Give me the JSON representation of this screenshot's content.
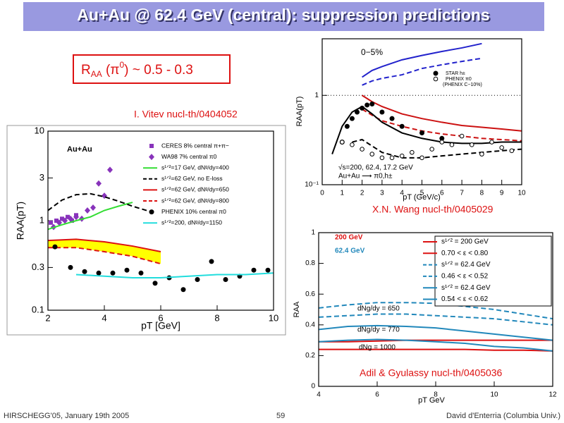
{
  "slide": {
    "title": "Au+Au @ 62.4 GeV (central): suppression predictions",
    "box": [
      "R",
      "AA",
      " (π",
      "0",
      ") ~ 0.5 - 0.3"
    ],
    "credits": [
      "I. Vitev nucl-th/0404052",
      "X.N. Wang nucl-th/0405029",
      "Adil & Gyulassy nucl-th/0405036"
    ],
    "footer": [
      "HIRSCHEGG'05, January 19th 2005",
      "59",
      "David d'Enterria (Columbia Univ.)"
    ]
  },
  "chart_data": [
    {
      "type": "line",
      "xlabel": "pT [GeV]",
      "ylabel": "RAA(pT)",
      "log_y": true,
      "xlim": [
        2,
        10
      ],
      "ylim": [
        0.1,
        10
      ],
      "xticks": [
        2,
        4,
        6,
        8,
        10
      ],
      "yticks": [
        0.1,
        0.3,
        1,
        3,
        10
      ],
      "annotations": [
        {
          "text": "Au+Au"
        }
      ],
      "series": [
        {
          "name": "CERES 8% central π+π−",
          "color": "#8833bb",
          "marker": "square",
          "x": [
            2.1,
            2.3,
            2.5,
            2.7,
            2.85,
            3.0
          ],
          "values": [
            0.95,
            1.0,
            1.05,
            1.1,
            1.0,
            1.15
          ]
        },
        {
          "name": "WA98 7% central π0",
          "color": "#8833bb",
          "marker": "diamond",
          "x": [
            2.2,
            2.4,
            2.6,
            2.8,
            3.0,
            3.2,
            3.4,
            3.6,
            3.8,
            4.0,
            4.2
          ],
          "values": [
            0.85,
            0.95,
            1.0,
            1.05,
            1.1,
            1.05,
            1.3,
            1.4,
            2.6,
            1.9,
            3.7
          ]
        },
        {
          "name": "s¹ᐟ²=17 GeV, dNᵍ/dy=400",
          "color": "#33dd33",
          "x": [
            2,
            2.5,
            3,
            3.5,
            4,
            4.5,
            5
          ],
          "values": [
            0.8,
            0.9,
            1.0,
            1.1,
            1.3,
            1.45,
            1.6
          ]
        },
        {
          "name": "s¹ᐟ²=62 GeV, no E-loss",
          "color": "#000000",
          "dash": true,
          "x": [
            2,
            2.5,
            3,
            3.5,
            4,
            4.5,
            5,
            5.5
          ],
          "values": [
            1.3,
            1.7,
            1.95,
            2.0,
            1.85,
            1.65,
            1.45,
            1.3
          ]
        },
        {
          "name": "s¹ᐟ²=62 GeV, dNᵍ/dy=650",
          "color": "#dd1111",
          "band_fill": "#ffff00",
          "x": [
            2,
            3,
            4,
            5,
            6
          ],
          "values": [
            0.6,
            0.62,
            0.58,
            0.52,
            0.45
          ]
        },
        {
          "name": "s¹ᐟ²=62 GeV, dNᵍ/dy=800",
          "color": "#dd1111",
          "dash": true,
          "x": [
            2,
            3,
            4,
            5,
            6
          ],
          "values": [
            0.5,
            0.5,
            0.45,
            0.4,
            0.33
          ]
        },
        {
          "name": "PHENIX 10% central π0",
          "color": "#000000",
          "marker": "circle",
          "x": [
            2.25,
            2.8,
            3.3,
            3.8,
            4.3,
            4.8,
            5.3,
            5.8,
            6.3,
            6.8,
            7.3,
            7.8,
            8.3,
            8.8,
            9.3,
            9.8
          ],
          "values": [
            0.51,
            0.3,
            0.27,
            0.26,
            0.26,
            0.28,
            0.26,
            0.2,
            0.23,
            0.17,
            0.22,
            0.35,
            0.22,
            0.24,
            0.28,
            0.28
          ]
        },
        {
          "name": "s¹ᐟ²=200, dNᵍ/dy=1150",
          "color": "#22dddd",
          "x": [
            3,
            4,
            5,
            6,
            7,
            8,
            9,
            10
          ],
          "values": [
            0.25,
            0.24,
            0.23,
            0.23,
            0.24,
            0.25,
            0.25,
            0.26
          ]
        }
      ]
    },
    {
      "type": "line",
      "xlabel": "pT (GeV/c)",
      "ylabel": "RAA(pT)",
      "log_y": true,
      "xlim": [
        0,
        10
      ],
      "ylim": [
        0.1,
        4.3
      ],
      "xticks": [
        0,
        1,
        2,
        3,
        4,
        5,
        6,
        7,
        8,
        9,
        10
      ],
      "yticks": [
        {
          "value": 0.1,
          "label": "10⁻¹"
        },
        1
      ],
      "annotations": [
        {
          "text": "0−5%"
        },
        {
          "text": "√s=200, 62.4, 17.2 GeV"
        },
        {
          "text": "Au+Au ⟶ π0,h±"
        },
        {
          "text": "(PHENIX C−10%)"
        }
      ],
      "series": [
        {
          "color": "#2222cc",
          "x": [
            2,
            2.5,
            3,
            4,
            5,
            6,
            7,
            8
          ],
          "values": [
            1.6,
            1.9,
            2.1,
            2.5,
            2.8,
            3.1,
            3.4,
            3.8
          ]
        },
        {
          "color": "#2222cc",
          "dash": true,
          "x": [
            2,
            2.5,
            3,
            4,
            5,
            6,
            7,
            8
          ],
          "values": [
            1.3,
            1.45,
            1.55,
            1.7,
            2.0,
            2.2,
            2.4,
            2.6
          ]
        },
        {
          "color": "#cc1111",
          "x": [
            2,
            2.5,
            3,
            4,
            5,
            6,
            7,
            8,
            9,
            10
          ],
          "values": [
            1.0,
            0.85,
            0.75,
            0.62,
            0.55,
            0.5,
            0.46,
            0.44,
            0.42,
            0.4
          ]
        },
        {
          "color": "#cc1111",
          "dash": true,
          "x": [
            2,
            2.5,
            3,
            4,
            5,
            6,
            7,
            8,
            9,
            10
          ],
          "values": [
            0.7,
            0.6,
            0.52,
            0.45,
            0.4,
            0.37,
            0.35,
            0.33,
            0.32,
            0.31
          ]
        },
        {
          "color": "#000000",
          "x": [
            0.5,
            1,
            1.5,
            2,
            2.5,
            3,
            4,
            5,
            6,
            7,
            8,
            9,
            10
          ],
          "values": [
            0.22,
            0.45,
            0.65,
            0.75,
            0.62,
            0.5,
            0.38,
            0.33,
            0.3,
            0.29,
            0.29,
            0.3,
            0.3
          ]
        },
        {
          "color": "#000000",
          "dash": true,
          "x": [
            1.5,
            2,
            3,
            4,
            5,
            6,
            7,
            8,
            9,
            10
          ],
          "values": [
            0.3,
            0.32,
            0.23,
            0.2,
            0.2,
            0.21,
            0.22,
            0.23,
            0.24,
            0.25
          ]
        },
        {
          "name": "STAR h±",
          "color": "#000000",
          "marker": "circle",
          "x": [
            1.0,
            1.25,
            1.5,
            1.75,
            2.0,
            2.25,
            2.5,
            3.0,
            3.5,
            4.0,
            5.0,
            6.0
          ],
          "values": [
            0.3,
            0.45,
            0.55,
            0.65,
            0.72,
            0.78,
            0.8,
            0.65,
            0.55,
            0.45,
            0.38,
            0.33
          ]
        },
        {
          "name": "PHENIX π0",
          "color": "#000000",
          "marker": "open-circle",
          "x": [
            1.0,
            1.5,
            2.0,
            2.5,
            3.0,
            3.5,
            4.0,
            4.5,
            5.0,
            5.5,
            6.0,
            6.5,
            7.0,
            7.5,
            8.0,
            8.5,
            9.0,
            9.5
          ],
          "values": [
            0.3,
            0.28,
            0.25,
            0.22,
            0.2,
            0.2,
            0.21,
            0.23,
            0.2,
            0.25,
            0.3,
            0.28,
            0.35,
            0.28,
            0.22,
            0.3,
            0.26,
            0.24
          ]
        }
      ]
    },
    {
      "type": "line",
      "xlabel": "pT GeV",
      "ylabel": "RAA",
      "xlim": [
        4,
        12
      ],
      "ylim": [
        0,
        1
      ],
      "xticks": [
        4,
        6,
        8,
        10,
        12
      ],
      "yticks": [
        0,
        0.2,
        0.4,
        0.6,
        0.8,
        1
      ],
      "annotations": [
        {
          "text": "200 GeV",
          "color": "#dd1111"
        },
        {
          "text": "62.4 GeV",
          "color": "#2288bb"
        },
        {
          "text": "dNg/dy = 650"
        },
        {
          "text": "dNg/dy = 770"
        },
        {
          "text": "dNg = 1000"
        }
      ],
      "series": [
        {
          "name": "s¹ᐟ² = 200 GeV",
          "subtitle": "0.70 < ε < 0.80",
          "color": "#dd1111",
          "x": [
            4,
            5,
            6,
            7,
            8,
            9,
            10,
            11,
            12
          ],
          "values": [
            0.29,
            0.29,
            0.295,
            0.3,
            0.3,
            0.3,
            0.3,
            0.3,
            0.3
          ],
          "values_low": [
            0.24,
            0.24,
            0.24,
            0.24,
            0.24,
            0.24,
            0.235,
            0.235,
            0.23
          ]
        },
        {
          "name": "s¹ᐟ² = 62.4 GeV",
          "subtitle": "0.46 < ε < 0.52",
          "color": "#2288bb",
          "dash": true,
          "x": [
            4,
            5,
            6,
            7,
            8,
            9,
            10,
            11,
            12
          ],
          "values": [
            0.51,
            0.53,
            0.545,
            0.545,
            0.54,
            0.52,
            0.5,
            0.47,
            0.44
          ],
          "values_low": [
            0.45,
            0.46,
            0.47,
            0.47,
            0.46,
            0.45,
            0.44,
            0.42,
            0.4
          ]
        },
        {
          "name": "s¹ᐟ² = 62.4 GeV",
          "subtitle": "0.54 < ε < 0.62",
          "color": "#2288bb",
          "x": [
            4,
            5,
            6,
            7,
            8,
            9,
            10,
            11,
            12
          ],
          "values": [
            0.37,
            0.39,
            0.395,
            0.39,
            0.38,
            0.36,
            0.34,
            0.32,
            0.3
          ],
          "values_low": [
            0.29,
            0.3,
            0.305,
            0.3,
            0.29,
            0.28,
            0.26,
            0.25,
            0.23
          ]
        }
      ]
    }
  ]
}
